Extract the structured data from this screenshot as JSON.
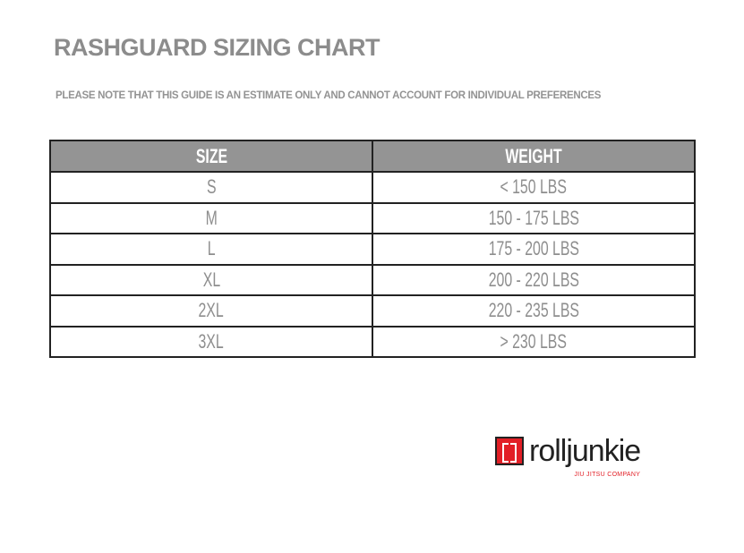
{
  "title": "RASHGUARD SIZING CHART",
  "note": "PLEASE NOTE THAT THIS GUIDE IS AN ESTIMATE ONLY AND CANNOT ACCOUNT FOR INDIVIDUAL PREFERENCES",
  "table": {
    "headers": [
      "SIZE",
      "WEIGHT"
    ],
    "rows": [
      [
        "S",
        "< 150 LBS"
      ],
      [
        "M",
        "150 - 175 LBS"
      ],
      [
        "L",
        "175 - 200 LBS"
      ],
      [
        "XL",
        "200 - 220 LBS"
      ],
      [
        "2XL",
        "220 - 235 LBS"
      ],
      [
        "3XL",
        "> 230 LBS"
      ]
    ]
  },
  "logo": {
    "name": "rolljunkie",
    "tagline": "JIU JITSU COMPANY",
    "brand_color": "#e21f26"
  },
  "colors": {
    "header_bg": "#949494",
    "text": "#8e8e8e"
  }
}
